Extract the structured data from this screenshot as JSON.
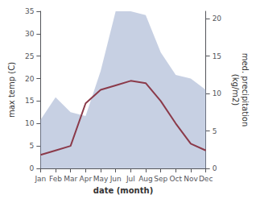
{
  "chart_data": {
    "type": "line",
    "xlabel": "date (month)",
    "ylabel": "max temp (C)",
    "y2label": "med. precipitation\n(kg/m2)",
    "categories": [
      "Jan",
      "Feb",
      "Mar",
      "Apr",
      "May",
      "Jun",
      "Jul",
      "Aug",
      "Sep",
      "Oct",
      "Nov",
      "Dec"
    ],
    "series": [
      {
        "type": "area",
        "axis": "y2",
        "color": "#99aacc",
        "values": [
          6.5,
          9.5,
          7.5,
          7.0,
          13.0,
          21.0,
          21.0,
          20.5,
          15.5,
          12.5,
          12.0,
          10.5
        ]
      },
      {
        "type": "line",
        "color": "#8B3A4A",
        "values": [
          3.0,
          4.0,
          5.0,
          14.5,
          17.5,
          18.5,
          19.5,
          19.0,
          15.0,
          10.0,
          5.5,
          4.0
        ]
      }
    ],
    "ylim": [
      0,
      35
    ],
    "yticks": [
      0,
      5,
      10,
      15,
      20,
      25,
      30,
      35
    ],
    "y2lim": [
      0,
      21
    ],
    "y2ticks": [
      0,
      5,
      10,
      15,
      20
    ],
    "grid": false
  }
}
